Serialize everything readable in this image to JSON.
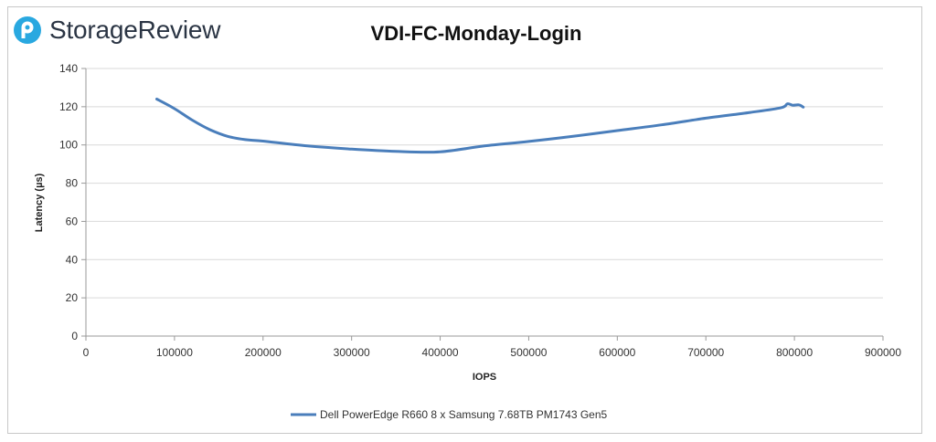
{
  "brand": {
    "name": "StorageReview",
    "accent": "#29a8e0"
  },
  "chart_data": {
    "type": "line",
    "title": "VDI-FC-Monday-Login",
    "xlabel": "IOPS",
    "ylabel": "Latency (µs)",
    "xlim": [
      0,
      900000
    ],
    "ylim": [
      0,
      140
    ],
    "x_ticks": [
      "0",
      "100000",
      "200000",
      "300000",
      "400000",
      "500000",
      "600000",
      "700000",
      "800000",
      "900000"
    ],
    "y_ticks": [
      "0",
      "20",
      "40",
      "60",
      "80",
      "100",
      "120",
      "140"
    ],
    "grid": "horizontal",
    "legend_position": "bottom",
    "series": [
      {
        "name": "Dell PowerEdge R660 8 x Samsung 7.68TB PM1743 Gen5",
        "color": "#4a7ebb",
        "points": [
          [
            80000,
            124
          ],
          [
            100000,
            119
          ],
          [
            120000,
            113
          ],
          [
            140000,
            108
          ],
          [
            160000,
            104.5
          ],
          [
            180000,
            102.8
          ],
          [
            200000,
            102
          ],
          [
            250000,
            99.5
          ],
          [
            300000,
            97.8
          ],
          [
            350000,
            96.6
          ],
          [
            400000,
            96.4
          ],
          [
            450000,
            99.5
          ],
          [
            500000,
            101.8
          ],
          [
            550000,
            104.5
          ],
          [
            600000,
            107.5
          ],
          [
            650000,
            110.5
          ],
          [
            700000,
            114
          ],
          [
            750000,
            117
          ],
          [
            785000,
            119.5
          ],
          [
            792000,
            121.5
          ],
          [
            798000,
            120.8
          ],
          [
            805000,
            121
          ],
          [
            810000,
            119.8
          ]
        ]
      }
    ]
  }
}
